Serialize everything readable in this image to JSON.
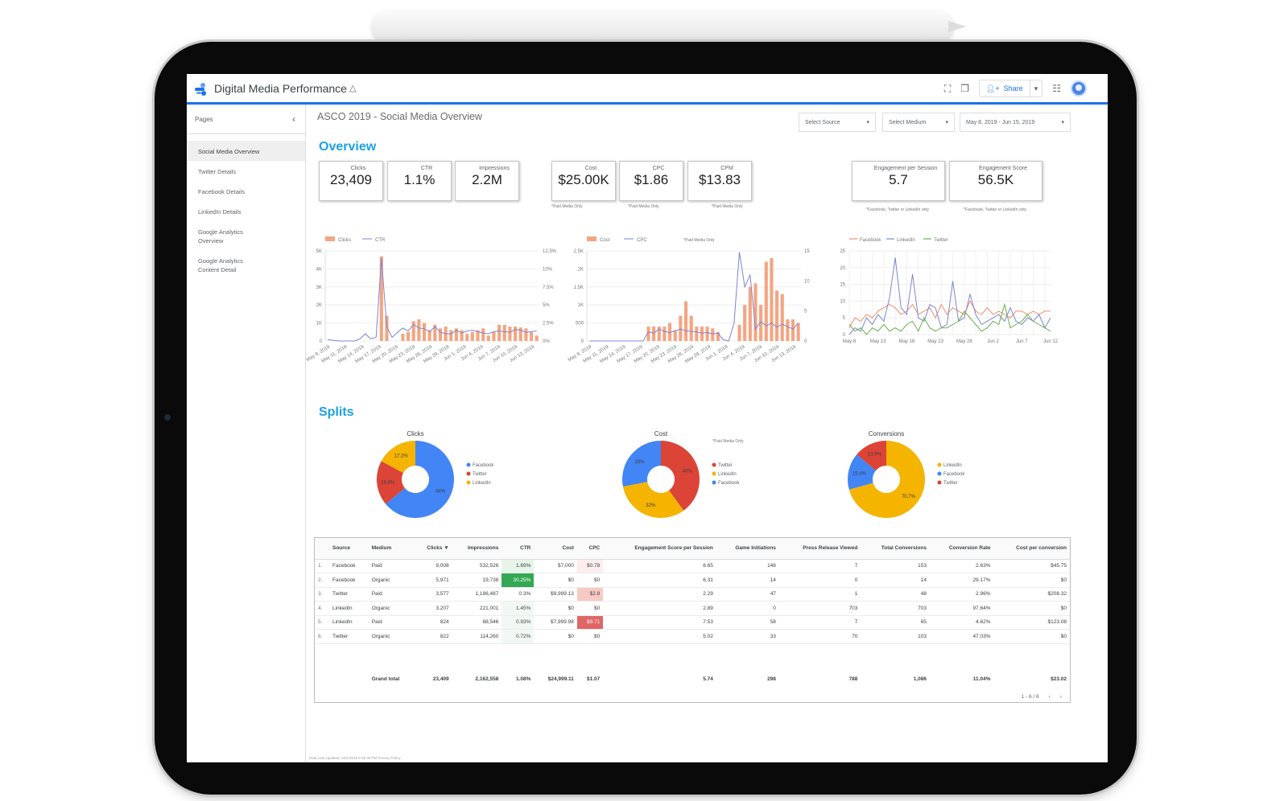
{
  "app": {
    "title": "Digital Media Performance",
    "share_label": "Share"
  },
  "icons": [
    "looker-logo-icon",
    "drive-icon",
    "fullscreen-icon",
    "copy-icon",
    "add-person-icon",
    "caret-down-icon",
    "apps-grid-icon",
    "avatar",
    "chevron-left-icon"
  ],
  "sidebar": {
    "heading": "Pages",
    "items": [
      {
        "label": "Social Media Overview",
        "active": true
      },
      {
        "label": "Twitter Details"
      },
      {
        "label": "Facebook Details"
      },
      {
        "label": "LinkedIn Details"
      },
      {
        "label": "Google Analytics\nOverview"
      },
      {
        "label": "Google Analytics\nContent Detail"
      }
    ]
  },
  "report": {
    "title": "ASCO 2019 - Social Media Overview",
    "filters": {
      "source": "Select Source",
      "medium": "Select Medium",
      "date": "May 8, 2019 - Jun 15, 2019"
    },
    "overview_heading": "Overview",
    "splits_heading": "Splits",
    "kpis": [
      {
        "label": "Clicks",
        "value": "23,409"
      },
      {
        "label": "CTR",
        "value": "1.1%"
      },
      {
        "label": "Impressions",
        "value": "2.2M"
      },
      {
        "label": "Cost",
        "value": "$25.00K"
      },
      {
        "label": "CPC",
        "value": "$1.86"
      },
      {
        "label": "CPM",
        "value": "$13.83"
      },
      {
        "label": "Engagement per Session",
        "value": "5.7"
      },
      {
        "label": "Engagement Score",
        "value": "56.5K"
      }
    ],
    "notes": {
      "paid_only": "*Paid Media Only",
      "channels": "*Facebook, Twitter or LinkedIn only"
    },
    "footer": "Data Last Updated: 10/1/2019 5:25:38 PM   Privacy Policy"
  },
  "colors": {
    "facebook": "#4285f4",
    "twitter": "#db4437",
    "linkedin": "#f4b400",
    "bar": "#f4a582",
    "line": "#7b86d6",
    "accent": "#1ba1e2",
    "ctr_high": "#34a853",
    "cpc_high": "#e06666"
  },
  "chart_data": [
    {
      "type": "bar",
      "legend": [
        "Clicks",
        "CTR"
      ],
      "y_ticks": [
        "0",
        "1K",
        "2K",
        "3K",
        "4K",
        "5K"
      ],
      "y2_ticks": [
        "0%",
        "2.5%",
        "5%",
        "7.5%",
        "10%",
        "12.5%"
      ],
      "x_ticks": [
        "May 8, 2019",
        "May 11, 2019",
        "May 14, 2019",
        "May 17, 2019",
        "May 20, 2019",
        "May 23, 2019",
        "May 26, 2019",
        "May 29, 2019",
        "Jun 1, 2019",
        "Jun 4, 2019",
        "Jun 7, 2019",
        "Jun 10, 2019",
        "Jun 13, 2019"
      ],
      "ylim": [
        0,
        5000
      ],
      "y2lim": [
        0,
        12.5
      ],
      "series": [
        {
          "name": "Clicks",
          "kind": "bar",
          "values": [
            0,
            0,
            0,
            0,
            0,
            0,
            0,
            0,
            0,
            0,
            4700,
            1400,
            0,
            0,
            400,
            500,
            1100,
            1200,
            1000,
            600,
            900,
            700,
            800,
            600,
            700,
            600,
            400,
            500,
            600,
            700,
            300,
            500,
            900,
            900,
            800,
            800,
            750,
            700,
            500,
            300
          ]
        },
        {
          "name": "CTR",
          "kind": "line",
          "values": [
            0.2,
            0.1,
            0,
            0,
            0,
            0,
            0.3,
            1.0,
            0.3,
            0.5,
            11.5,
            2.0,
            0.5,
            1.2,
            1.8,
            1.4,
            2.3,
            1.8,
            1.7,
            1.3,
            2.0,
            1.2,
            1.0,
            1.0,
            1.5,
            1.1,
            1.4,
            1.5,
            1.3,
            1.1,
            1.0,
            1.3,
            1.4,
            1.3,
            1.2,
            1.6,
            1.5,
            1.2,
            1.3,
            1.4
          ]
        }
      ]
    },
    {
      "type": "bar",
      "legend": [
        "Cost",
        "CPC"
      ],
      "note": "*Paid Media Only",
      "y_ticks": [
        "0",
        "500",
        "1K",
        "1.5K",
        "2K",
        "2.5K"
      ],
      "y2_ticks": [
        "0",
        "5",
        "10",
        "15"
      ],
      "x_ticks": [
        "May 8, 2019",
        "May 11, 2019",
        "May 14, 2019",
        "May 17, 2019",
        "May 20, 2019",
        "May 23, 2019",
        "May 26, 2019",
        "May 29, 2019",
        "Jun 1, 2019",
        "Jun 4, 2019",
        "Jun 7, 2019",
        "Jun 10, 2019",
        "Jun 13, 2019"
      ],
      "ylim": [
        0,
        2500
      ],
      "y2lim": [
        0,
        15
      ],
      "series": [
        {
          "name": "Cost",
          "kind": "bar",
          "values": [
            0,
            0,
            0,
            0,
            0,
            0,
            0,
            0,
            0,
            0,
            0,
            400,
            400,
            400,
            400,
            500,
            300,
            700,
            1100,
            700,
            400,
            400,
            400,
            350,
            250,
            0,
            0,
            0,
            450,
            1000,
            1500,
            1600,
            1000,
            2200,
            2300,
            1400,
            1300,
            600,
            600,
            500
          ]
        },
        {
          "name": "CPC",
          "kind": "line",
          "values": [
            0,
            0,
            0,
            0,
            0,
            0,
            0,
            0,
            0,
            0,
            0,
            1.5,
            1.3,
            2.0,
            1.6,
            1.4,
            1.7,
            2.0,
            1.7,
            1.6,
            1.5,
            1.3,
            1.4,
            1.2,
            1.3,
            0.2,
            0,
            3.0,
            14.8,
            9.0,
            11.0,
            2.0,
            3.2,
            2.5,
            3.0,
            2.3,
            2.8,
            2.4,
            2.0,
            3.0
          ]
        }
      ]
    },
    {
      "type": "line",
      "legend": [
        "Facebook",
        "LinkedIn",
        "Twitter"
      ],
      "y_ticks": [
        "0",
        "5",
        "10",
        "15",
        "20",
        "25"
      ],
      "x_ticks": [
        "May 8",
        "May 13",
        "May 18",
        "May 23",
        "May 28",
        "Jun 2",
        "Jun 7",
        "Jun 12"
      ],
      "ylim": [
        0,
        25
      ],
      "series": [
        {
          "name": "Facebook",
          "values": [
            2,
            5,
            4,
            6,
            5,
            7,
            8,
            9,
            8,
            6,
            7,
            9,
            6,
            7,
            8,
            5,
            9,
            6,
            8,
            7,
            6,
            10,
            7,
            6,
            8,
            6,
            7,
            6,
            5,
            7,
            7,
            6,
            7,
            6,
            7,
            7
          ]
        },
        {
          "name": "LinkedIn",
          "values": [
            0,
            2,
            1,
            5,
            3,
            6,
            4,
            11,
            23,
            8,
            6,
            18,
            5,
            4,
            9,
            8,
            2,
            3,
            16,
            4,
            5,
            12,
            6,
            3,
            4,
            5,
            6,
            4,
            8,
            4,
            3,
            5,
            4,
            6,
            2,
            5
          ]
        },
        {
          "name": "Twitter",
          "values": [
            3,
            1,
            2,
            0,
            2,
            1,
            3,
            1,
            2,
            1,
            3,
            4,
            1,
            5,
            2,
            1,
            2,
            2,
            3,
            4,
            7,
            5,
            3,
            1,
            2,
            4,
            3,
            9,
            2,
            3,
            4,
            6,
            4,
            3,
            2,
            1
          ]
        }
      ]
    },
    {
      "type": "pie",
      "title": "Clicks",
      "labels": [
        "Facebook",
        "Twitter",
        "LinkedIn"
      ],
      "values": [
        64,
        18.8,
        17.2
      ],
      "value_labels": [
        "64%",
        "18.8%",
        "17.2%"
      ]
    },
    {
      "type": "pie",
      "title": "Cost",
      "note": "*Paid Media Only",
      "labels": [
        "Twitter",
        "LinkedIn",
        "Facebook"
      ],
      "values": [
        40,
        32,
        28
      ],
      "value_labels": [
        "40%",
        "32%",
        "28%"
      ]
    },
    {
      "type": "pie",
      "title": "Conversions",
      "labels": [
        "LinkedIn",
        "Facebook",
        "Twitter"
      ],
      "values": [
        70.7,
        15.4,
        13.9
      ],
      "value_labels": [
        "70.7%",
        "15.4%",
        "13.9%"
      ]
    },
    {
      "type": "table",
      "columns": [
        "Source",
        "Medium",
        "Clicks ▼",
        "Impressions",
        "CTR",
        "Cost",
        "CPC",
        "Engagement Score per Session",
        "Game Initiations",
        "Press Release Viewed",
        "Total Conversions",
        "Conversion Rate",
        "Cost per conversion"
      ],
      "rows": [
        [
          "1.",
          "Facebook",
          "Paid",
          "9,008",
          "532,526",
          "1.69%",
          "$7,000",
          "$0.78",
          "6.65",
          "146",
          "7",
          "153",
          "2.63%",
          "$45.75"
        ],
        [
          "2.",
          "Facebook",
          "Organic",
          "5,971",
          "19,738",
          "30.25%",
          "$0",
          "$0",
          "6.31",
          "14",
          "0",
          "14",
          "29.17%",
          "$0"
        ],
        [
          "3.",
          "Twitter",
          "Paid",
          "3,577",
          "1,186,487",
          "0.3%",
          "$9,999.13",
          "$2.8",
          "2.29",
          "47",
          "1",
          "48",
          "2.96%",
          "$208.32"
        ],
        [
          "4.",
          "LinkedIn",
          "Organic",
          "3,207",
          "221,001",
          "1.45%",
          "$0",
          "$0",
          "2.89",
          "0",
          "703",
          "703",
          "97.64%",
          "$0"
        ],
        [
          "5.",
          "LinkedIn",
          "Paid",
          "824",
          "88,546",
          "0.93%",
          "$7,999.98",
          "$9.71",
          "7.53",
          "58",
          "7",
          "65",
          "4.62%",
          "$123.08"
        ],
        [
          "6.",
          "Twitter",
          "Organic",
          "822",
          "114,260",
          "0.72%",
          "$0",
          "$0",
          "5.02",
          "33",
          "70",
          "103",
          "47.03%",
          "$0"
        ]
      ],
      "grand_total": [
        "Grand total",
        "23,409",
        "2,162,558",
        "1.08%",
        "$24,999.11",
        "$1.07",
        "5.74",
        "298",
        "788",
        "1,086",
        "11.04%",
        "$23.02"
      ],
      "pager": "1 - 6 / 6"
    }
  ]
}
